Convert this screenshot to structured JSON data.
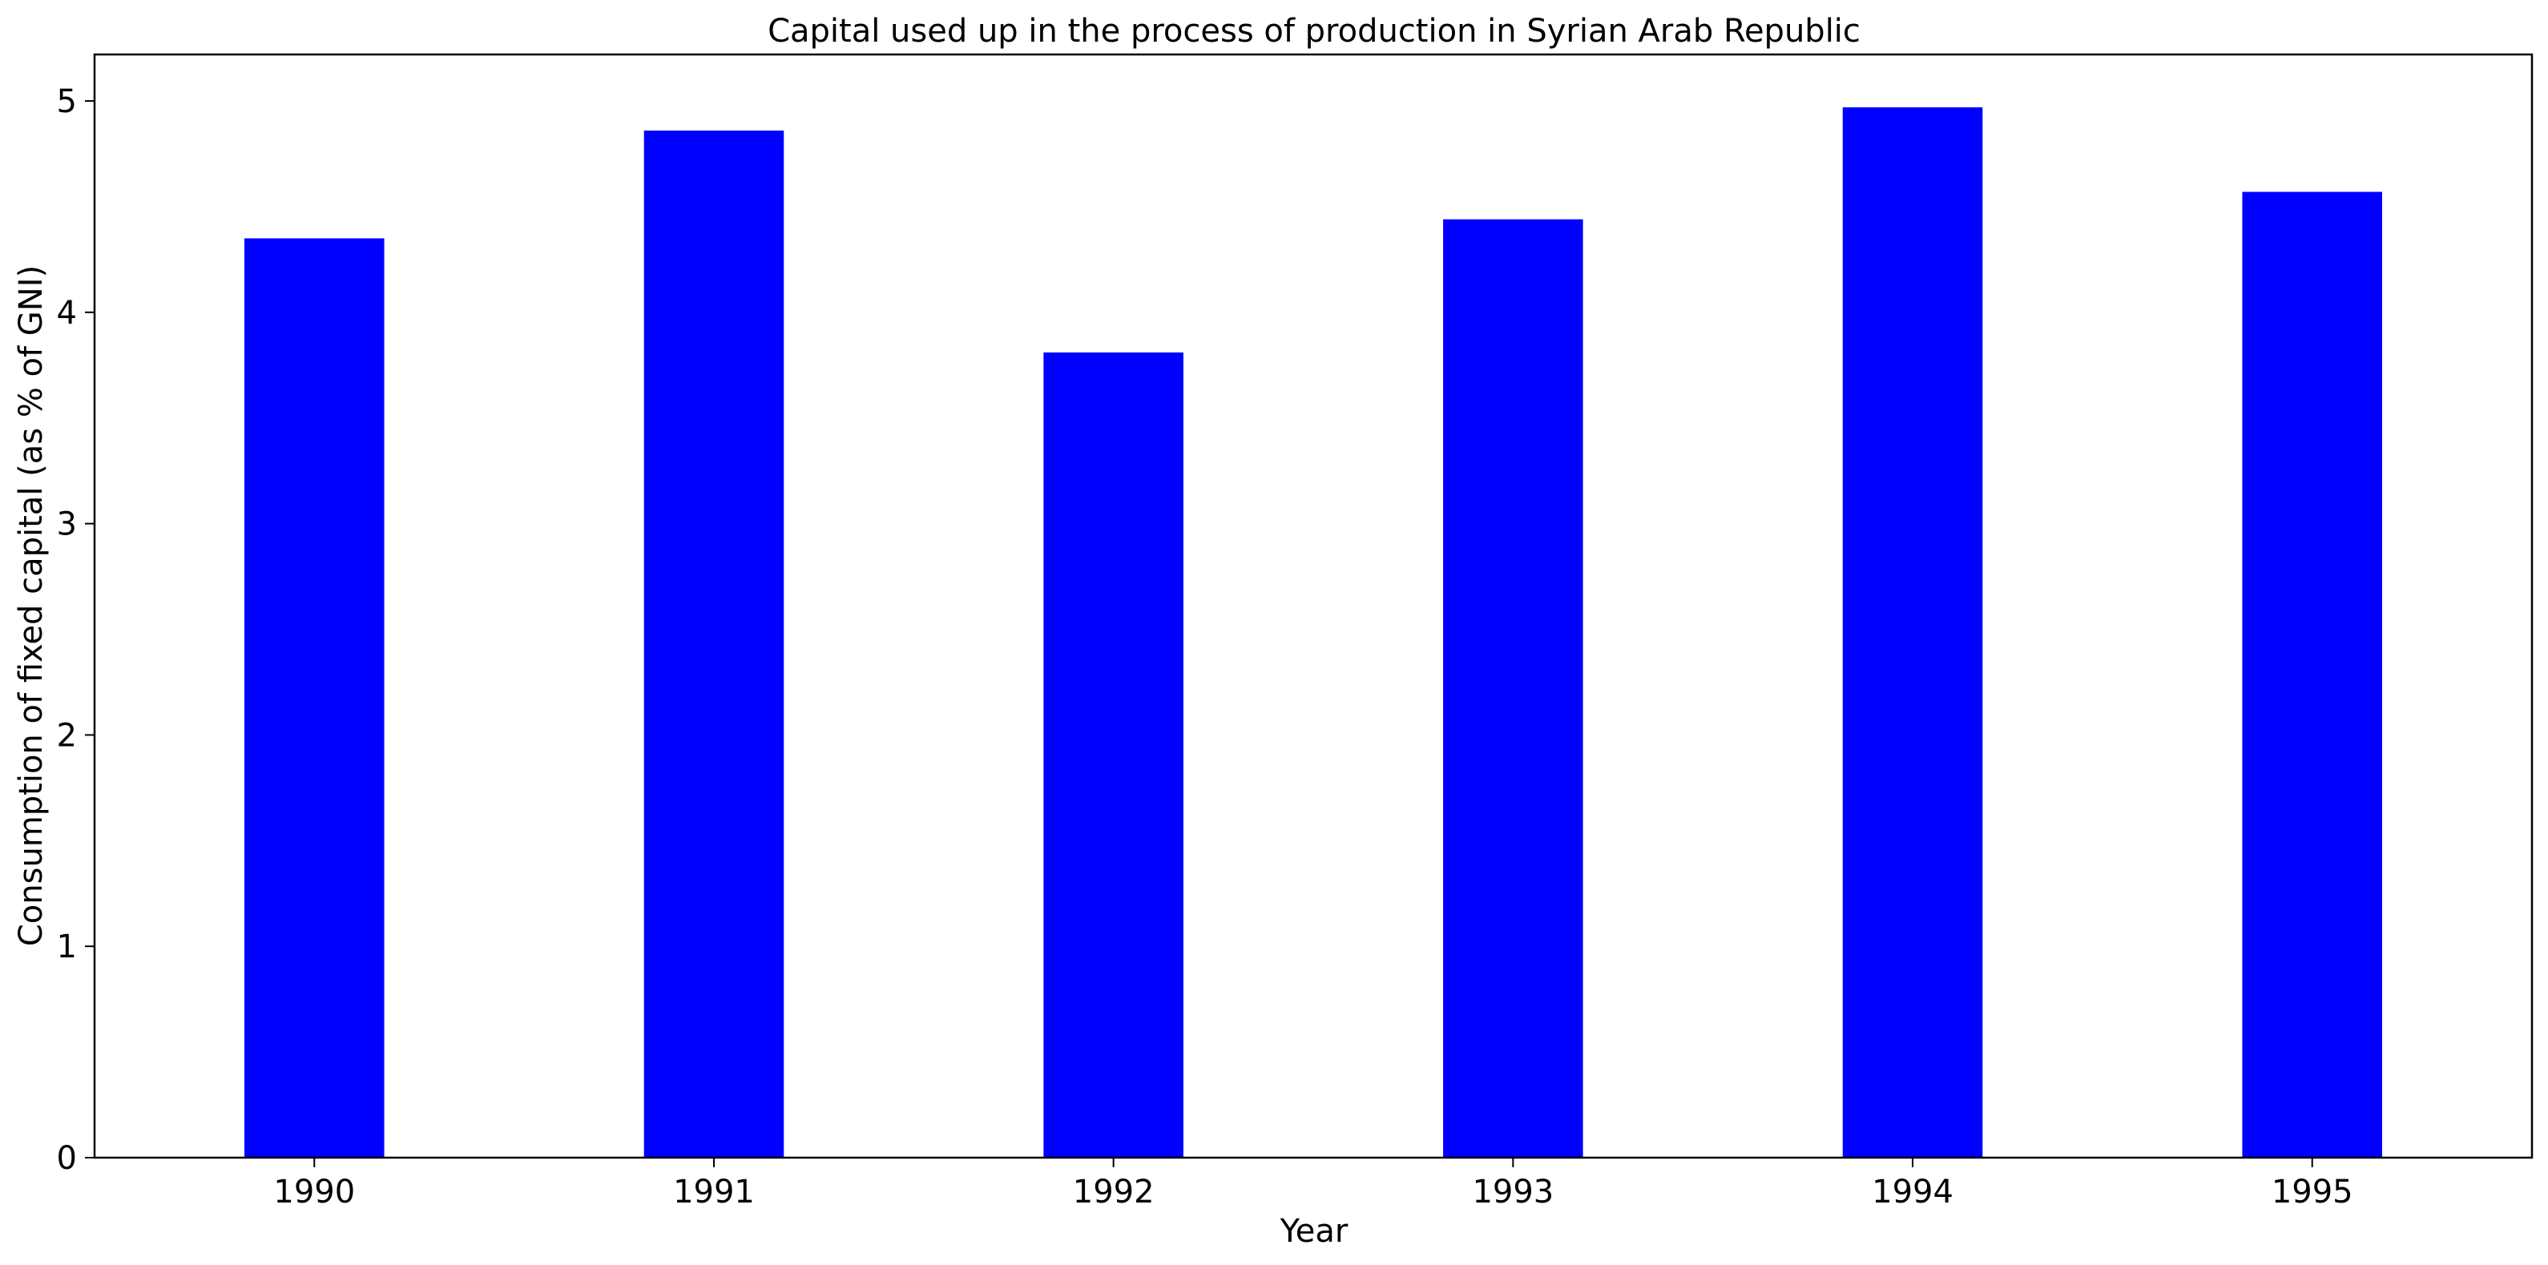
{
  "chart_data": {
    "type": "bar",
    "title": "Capital used up in the process of production in Syrian Arab Republic",
    "xlabel": "Year",
    "ylabel": "Consumption of fixed capital (as % of GNI)",
    "categories": [
      "1990",
      "1991",
      "1992",
      "1993",
      "1994",
      "1995"
    ],
    "values": [
      4.35,
      4.86,
      3.81,
      4.44,
      4.97,
      4.57
    ],
    "ylim": [
      0,
      5.22
    ],
    "yticks": [
      0,
      1,
      2,
      3,
      4,
      5
    ],
    "bar_color": "#0000ff",
    "grid": false,
    "legend": "none"
  }
}
